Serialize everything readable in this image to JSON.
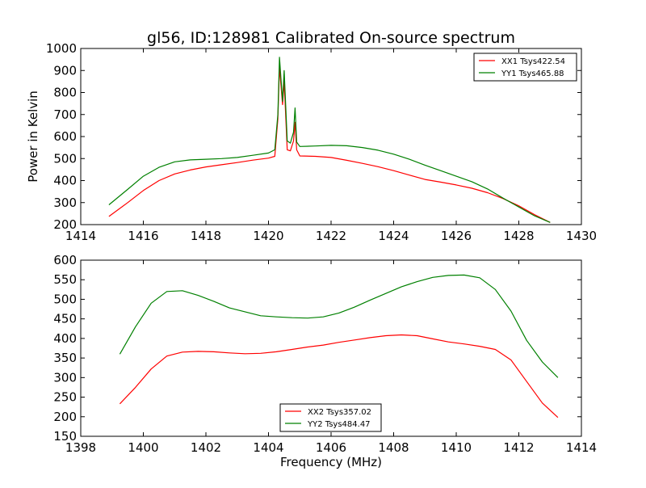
{
  "figure_title": "gl56, ID:128981 Calibrated On-source spectrum",
  "chart_data": [
    {
      "type": "line",
      "title": "gl56, ID:128981 Calibrated On-source spectrum",
      "xlabel": "",
      "ylabel": "Power in Kelvin",
      "xlim": [
        1414,
        1430
      ],
      "ylim": [
        200,
        1000
      ],
      "xticks": [
        1414,
        1416,
        1418,
        1420,
        1422,
        1424,
        1426,
        1428,
        1430
      ],
      "yticks": [
        200,
        300,
        400,
        500,
        600,
        700,
        800,
        900,
        1000
      ],
      "legend_position": "top-right",
      "series": [
        {
          "name": "XX1 Tsys422.54",
          "color": "#ff0000",
          "x": [
            1414.9,
            1415.5,
            1416.0,
            1416.5,
            1417.0,
            1417.5,
            1418.0,
            1418.5,
            1419.0,
            1419.5,
            1420.0,
            1420.2,
            1420.3,
            1420.35,
            1420.45,
            1420.5,
            1420.6,
            1420.7,
            1420.8,
            1420.85,
            1420.9,
            1421.0,
            1421.5,
            1422.0,
            1422.5,
            1423.0,
            1423.5,
            1424.0,
            1424.5,
            1425.0,
            1425.5,
            1426.0,
            1426.5,
            1427.0,
            1427.5,
            1428.0,
            1428.5,
            1429.0
          ],
          "y": [
            237,
            300,
            355,
            400,
            430,
            448,
            462,
            472,
            482,
            493,
            502,
            510,
            680,
            915,
            745,
            850,
            540,
            535,
            580,
            665,
            540,
            512,
            510,
            505,
            492,
            478,
            463,
            445,
            425,
            405,
            393,
            380,
            365,
            345,
            318,
            285,
            245,
            210
          ]
        },
        {
          "name": "YY1 Tsys465.88",
          "color": "#008000",
          "x": [
            1414.9,
            1415.5,
            1416.0,
            1416.5,
            1417.0,
            1417.5,
            1418.0,
            1418.5,
            1419.0,
            1419.5,
            1420.0,
            1420.2,
            1420.3,
            1420.35,
            1420.45,
            1420.5,
            1420.6,
            1420.7,
            1420.8,
            1420.85,
            1420.9,
            1421.0,
            1421.5,
            1422.0,
            1422.5,
            1423.0,
            1423.5,
            1424.0,
            1424.5,
            1425.0,
            1425.5,
            1426.0,
            1426.5,
            1427.0,
            1427.5,
            1428.0,
            1428.5,
            1429.0
          ],
          "y": [
            290,
            360,
            420,
            460,
            485,
            494,
            497,
            500,
            505,
            515,
            525,
            540,
            700,
            960,
            760,
            900,
            580,
            570,
            620,
            730,
            575,
            555,
            557,
            560,
            558,
            550,
            538,
            520,
            497,
            470,
            445,
            420,
            395,
            362,
            320,
            280,
            240,
            210
          ]
        }
      ]
    },
    {
      "type": "line",
      "title": "",
      "xlabel": "Frequency (MHz)",
      "ylabel": "",
      "xlim": [
        1398,
        1414
      ],
      "ylim": [
        150,
        600
      ],
      "xticks": [
        1398,
        1400,
        1402,
        1404,
        1406,
        1408,
        1410,
        1412,
        1414
      ],
      "yticks": [
        150,
        200,
        250,
        300,
        350,
        400,
        450,
        500,
        550,
        600
      ],
      "legend_position": "bottom-center",
      "series": [
        {
          "name": "XX2 Tsys357.02",
          "color": "#ff0000",
          "x": [
            1399.25,
            1399.75,
            1400.25,
            1400.75,
            1401.25,
            1401.75,
            1402.25,
            1402.75,
            1403.25,
            1403.75,
            1404.25,
            1404.75,
            1405.25,
            1405.75,
            1406.25,
            1406.75,
            1407.25,
            1407.75,
            1408.25,
            1408.75,
            1409.25,
            1409.75,
            1410.25,
            1410.75,
            1411.25,
            1411.75,
            1412.25,
            1412.75,
            1413.25
          ],
          "y": [
            233,
            275,
            322,
            355,
            365,
            367,
            366,
            363,
            361,
            362,
            366,
            372,
            378,
            383,
            390,
            396,
            402,
            407,
            409,
            407,
            399,
            391,
            386,
            380,
            372,
            345,
            290,
            235,
            198
          ]
        },
        {
          "name": "YY2 Tsys484.47",
          "color": "#008000",
          "x": [
            1399.25,
            1399.75,
            1400.25,
            1400.75,
            1401.25,
            1401.75,
            1402.25,
            1402.75,
            1403.25,
            1403.75,
            1404.25,
            1404.75,
            1405.25,
            1405.75,
            1406.25,
            1406.75,
            1407.25,
            1407.75,
            1408.25,
            1408.75,
            1409.25,
            1409.75,
            1410.25,
            1410.75,
            1411.25,
            1411.75,
            1412.25,
            1412.75,
            1413.25
          ],
          "y": [
            360,
            430,
            490,
            520,
            522,
            510,
            495,
            478,
            468,
            458,
            455,
            453,
            452,
            455,
            465,
            480,
            498,
            515,
            532,
            545,
            556,
            561,
            562,
            555,
            525,
            470,
            395,
            340,
            300
          ]
        }
      ]
    }
  ]
}
